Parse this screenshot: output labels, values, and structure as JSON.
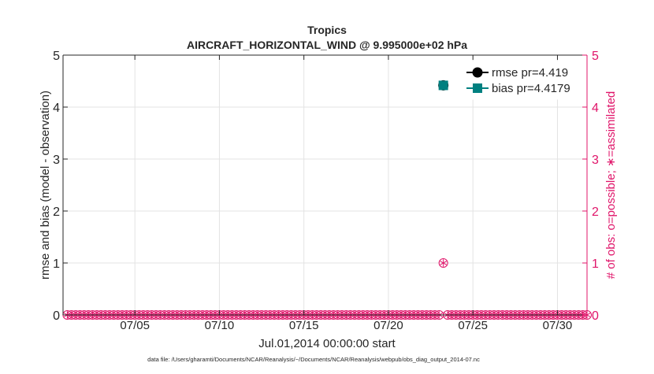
{
  "chart_data": {
    "type": "scatter",
    "title": "Tropics",
    "subtitle": "AIRCRAFT_HORIZONTAL_WIND @ 9.995000e+02 hPa",
    "xlabel": "Jul.01,2014 00:00:00 start",
    "ylabel_left": "rmse and bias (model - observation)",
    "ylabel_right": "# of obs: o=possible; ∗=assimilated",
    "footer": "data file: /Users/gharamti/Documents/NCAR/Reanalysis/~/Documents/NCAR/Reanalysis/webpub/obs_diag_output_2014-07.nc",
    "xlim": [
      0.75,
      31.75
    ],
    "ylim_left": [
      0,
      5
    ],
    "ylim_right": [
      0,
      5
    ],
    "yticks": [
      0,
      1,
      2,
      3,
      4,
      5
    ],
    "xtick_values": [
      5,
      10,
      15,
      20,
      25,
      30
    ],
    "xtick_labels": [
      "07/05",
      "07/10",
      "07/15",
      "07/20",
      "07/25",
      "07/30"
    ],
    "grid": true,
    "legend_position": "top-right",
    "series": [
      {
        "name": "rmse",
        "label": "rmse pr=4.419",
        "marker": "circle",
        "color": "#000000",
        "x": [
          23.25
        ],
        "y": [
          4.419
        ]
      },
      {
        "name": "bias",
        "label": "bias pr=4.4179",
        "marker": "square",
        "color": "#008080",
        "x": [
          23.25
        ],
        "y": [
          4.4179
        ]
      }
    ],
    "obs_counts": {
      "color": "#e0156a",
      "x_start": 1.0,
      "x_step": 0.25,
      "n": 124,
      "possible_nonzero": [
        {
          "x": 23.25,
          "count": 1
        }
      ],
      "assimilated_nonzero": [
        {
          "x": 23.25,
          "count": 1
        }
      ]
    }
  }
}
